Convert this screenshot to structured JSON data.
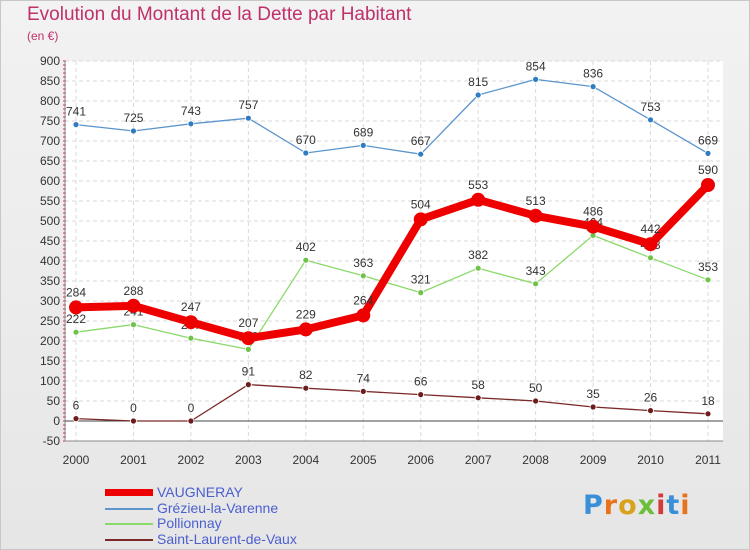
{
  "title": "Evolution du Montant de la Dette par Habitant",
  "unit_label": "(en €)",
  "logo_text": "Proxiti",
  "chart_data": {
    "type": "line",
    "categories": [
      "2000",
      "2001",
      "2002",
      "2003",
      "2004",
      "2005",
      "2006",
      "2007",
      "2008",
      "2009",
      "2010",
      "2011"
    ],
    "ylim": [
      -50,
      900
    ],
    "yticks": [
      -50,
      0,
      50,
      100,
      150,
      200,
      250,
      300,
      350,
      400,
      450,
      500,
      550,
      600,
      650,
      700,
      750,
      800,
      850,
      900
    ],
    "grid": true,
    "legend_position": "bottom-left",
    "series": [
      {
        "name": "Grézieu-la-Varenne",
        "color": "#5b95cc",
        "marker": "#2f7cc0",
        "values": [
          741,
          725,
          743,
          757,
          670,
          689,
          667,
          815,
          854,
          836,
          753,
          669
        ]
      },
      {
        "name": "Pollionnay",
        "color": "#8bd96a",
        "marker": "#6fc34a",
        "values": [
          222,
          241,
          207,
          179,
          402,
          363,
          321,
          382,
          343,
          464,
          408,
          353
        ]
      },
      {
        "name": "Saint-Laurent-de-Vaux",
        "color": "#7a2828",
        "marker": "#6b1c1c",
        "values": [
          6,
          0,
          0,
          91,
          82,
          74,
          66,
          58,
          50,
          35,
          26,
          18
        ]
      },
      {
        "name": "VAUGNERAY",
        "color": "#ee0000",
        "marker": "#ee0000",
        "values": [
          284,
          288,
          247,
          207,
          229,
          264,
          504,
          553,
          513,
          486,
          442,
          590
        ]
      }
    ]
  },
  "legend": [
    {
      "name": "VAUGNERAY",
      "color": "#ee0000"
    },
    {
      "name": "Grézieu-la-Varenne",
      "color": "#5b95cc"
    },
    {
      "name": "Pollionnay",
      "color": "#8bd96a"
    },
    {
      "name": "Saint-Laurent-de-Vaux",
      "color": "#7a2828"
    }
  ]
}
